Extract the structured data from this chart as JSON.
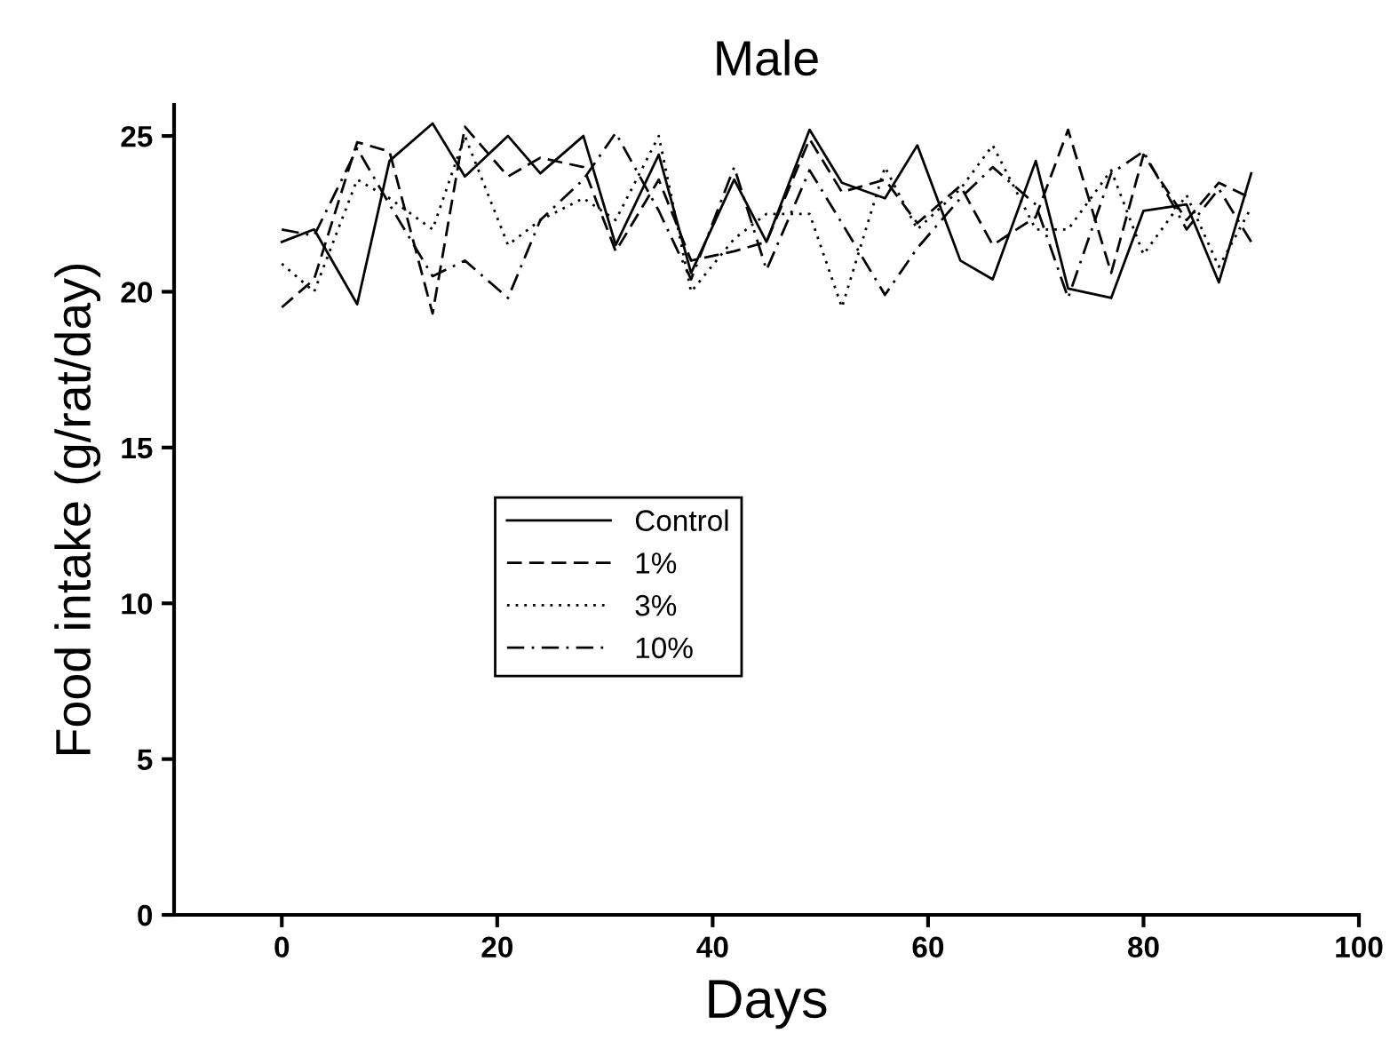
{
  "chart_data": {
    "type": "line",
    "title": "Male",
    "xlabel": "Days",
    "ylabel": "Food intake (g/rat/day)",
    "x": [
      0,
      3,
      7,
      10,
      14,
      17,
      21,
      24,
      28,
      31,
      35,
      38,
      42,
      45,
      49,
      52,
      56,
      59,
      63,
      66,
      70,
      73,
      77,
      80,
      84,
      87,
      90
    ],
    "series": [
      {
        "name": "Control",
        "color": "#000000",
        "line_style": "solid",
        "values": [
          21.6,
          22.0,
          19.6,
          24.2,
          25.4,
          23.7,
          25.0,
          23.8,
          25.0,
          21.5,
          24.4,
          20.6,
          23.6,
          21.6,
          25.2,
          23.5,
          23.0,
          24.7,
          21.0,
          20.4,
          24.2,
          20.1,
          19.8,
          22.6,
          22.8,
          20.3,
          23.8
        ]
      },
      {
        "name": "1%",
        "color": "#000000",
        "line_style": "dashed",
        "values": [
          19.5,
          20.4,
          24.8,
          24.5,
          19.3,
          25.3,
          23.7,
          24.3,
          24.0,
          21.3,
          23.6,
          21.0,
          21.3,
          21.6,
          24.9,
          23.2,
          23.6,
          22.2,
          23.4,
          21.5,
          22.4,
          25.2,
          20.6,
          24.4,
          22.3,
          23.5,
          23.0
        ]
      },
      {
        "name": "3%",
        "color": "#000000",
        "line_style": "dotted",
        "values": [
          20.9,
          20.0,
          23.6,
          23.0,
          22.0,
          25.0,
          21.5,
          22.3,
          23.0,
          22.3,
          25.0,
          20.0,
          21.7,
          22.5,
          22.5,
          19.5,
          24.0,
          22.0,
          23.3,
          24.7,
          22.0,
          22.0,
          23.9,
          21.2,
          23.1,
          20.8,
          22.7
        ]
      },
      {
        "name": "10%",
        "color": "#000000",
        "line_style": "dashdot",
        "values": [
          22.0,
          21.8,
          24.6,
          22.8,
          20.5,
          21.0,
          19.8,
          22.3,
          23.6,
          25.1,
          22.6,
          20.4,
          24.0,
          20.7,
          23.9,
          22.2,
          19.9,
          21.4,
          23.0,
          24.0,
          22.8,
          19.8,
          23.8,
          24.5,
          22.0,
          23.3,
          21.6
        ]
      }
    ],
    "xlim": [
      -10,
      100
    ],
    "xticks": [
      0,
      20,
      40,
      60,
      80,
      100
    ],
    "ylim": [
      0,
      26
    ],
    "yticks": [
      0,
      5,
      10,
      15,
      20,
      25
    ],
    "grid": false,
    "legend": "center",
    "marker": "none"
  }
}
